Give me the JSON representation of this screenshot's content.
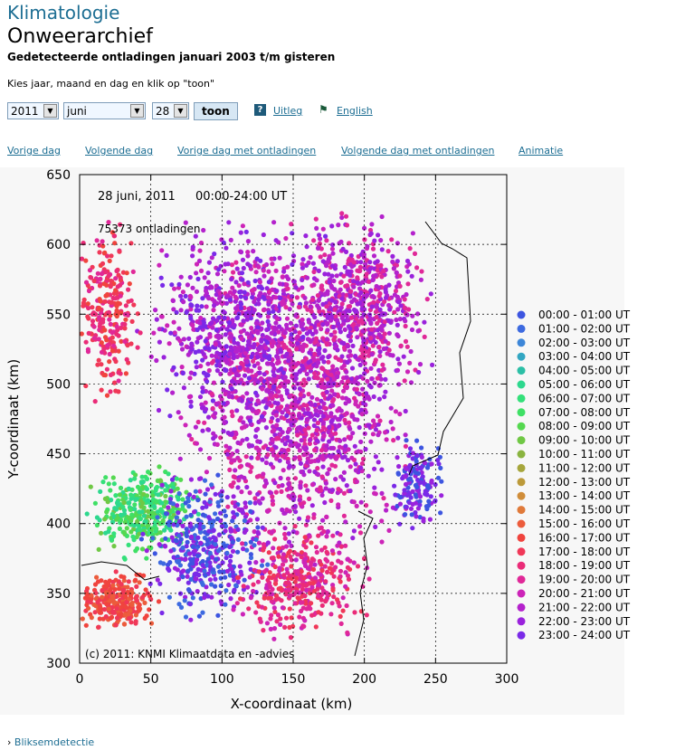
{
  "header": {
    "site_title": "Klimatologie",
    "page_title": "Onweerarchief",
    "subtitle": "Gedetecteerde ontladingen januari 2003 t/m gisteren",
    "instruction": "Kies jaar, maand en dag en klik op \"toon\""
  },
  "controls": {
    "year": "2011",
    "month": "juni",
    "day": "28",
    "show_button": "toon",
    "help_icon": "help-icon",
    "help_link": "Uitleg",
    "flag_icon": "flag-icon",
    "english_link": "English"
  },
  "nav": {
    "prev_day": "Vorige dag",
    "next_day": "Volgende dag",
    "prev_day_discharges": "Vorige dag met ontladingen",
    "next_day_discharges": "Volgende dag met ontladingen",
    "animation": "Animatie"
  },
  "map": {
    "date_label": "28 juni, 2011",
    "time_label": "00:00-24:00 UT",
    "count_label": "75373 ontladingen",
    "copyright": "(c) 2011: KNMI Klimaatdata en -advies",
    "xlabel": "X-coordinaat (km)",
    "ylabel": "Y-coordinaat (km)",
    "xticks": [
      "0",
      "50",
      "100",
      "150",
      "200",
      "250",
      "300"
    ],
    "yticks": [
      "300",
      "350",
      "400",
      "450",
      "500",
      "550",
      "600",
      "650"
    ],
    "legend": [
      {
        "label": "00:00 - 01:00 UT",
        "color": "#3d55e0"
      },
      {
        "label": "01:00 - 02:00 UT",
        "color": "#3d6ae0"
      },
      {
        "label": "02:00 - 03:00 UT",
        "color": "#3d86d8"
      },
      {
        "label": "03:00 - 04:00 UT",
        "color": "#32a6c2"
      },
      {
        "label": "04:00 - 05:00 UT",
        "color": "#2cbfa6"
      },
      {
        "label": "05:00 - 06:00 UT",
        "color": "#2dd88e"
      },
      {
        "label": "06:00 - 07:00 UT",
        "color": "#34e07a"
      },
      {
        "label": "07:00 - 08:00 UT",
        "color": "#3fe065"
      },
      {
        "label": "08:00 - 09:00 UT",
        "color": "#55d850"
      },
      {
        "label": "09:00 - 10:00 UT",
        "color": "#70c845"
      },
      {
        "label": "10:00 - 11:00 UT",
        "color": "#8ab440"
      },
      {
        "label": "11:00 - 12:00 UT",
        "color": "#a6a63c"
      },
      {
        "label": "12:00 - 13:00 UT",
        "color": "#bc9a3a"
      },
      {
        "label": "13:00 - 14:00 UT",
        "color": "#d08d3a"
      },
      {
        "label": "14:00 - 15:00 UT",
        "color": "#e07a3a"
      },
      {
        "label": "15:00 - 16:00 UT",
        "color": "#ec5c3c"
      },
      {
        "label": "16:00 - 17:00 UT",
        "color": "#f0443e"
      },
      {
        "label": "17:00 - 18:00 UT",
        "color": "#f03858"
      },
      {
        "label": "18:00 - 19:00 UT",
        "color": "#ea2c78"
      },
      {
        "label": "19:00 - 20:00 UT",
        "color": "#e02898"
      },
      {
        "label": "20:00 - 21:00 UT",
        "color": "#cc24b8"
      },
      {
        "label": "21:00 - 22:00 UT",
        "color": "#b422cc"
      },
      {
        "label": "22:00 - 23:00 UT",
        "color": "#9a22dc"
      },
      {
        "label": "23:00 - 24:00 UT",
        "color": "#7a2ae8"
      }
    ]
  },
  "footer": {
    "breadcrumb_icon": "chevron-right-icon",
    "breadcrumb": "Bliksemdetectie"
  }
}
